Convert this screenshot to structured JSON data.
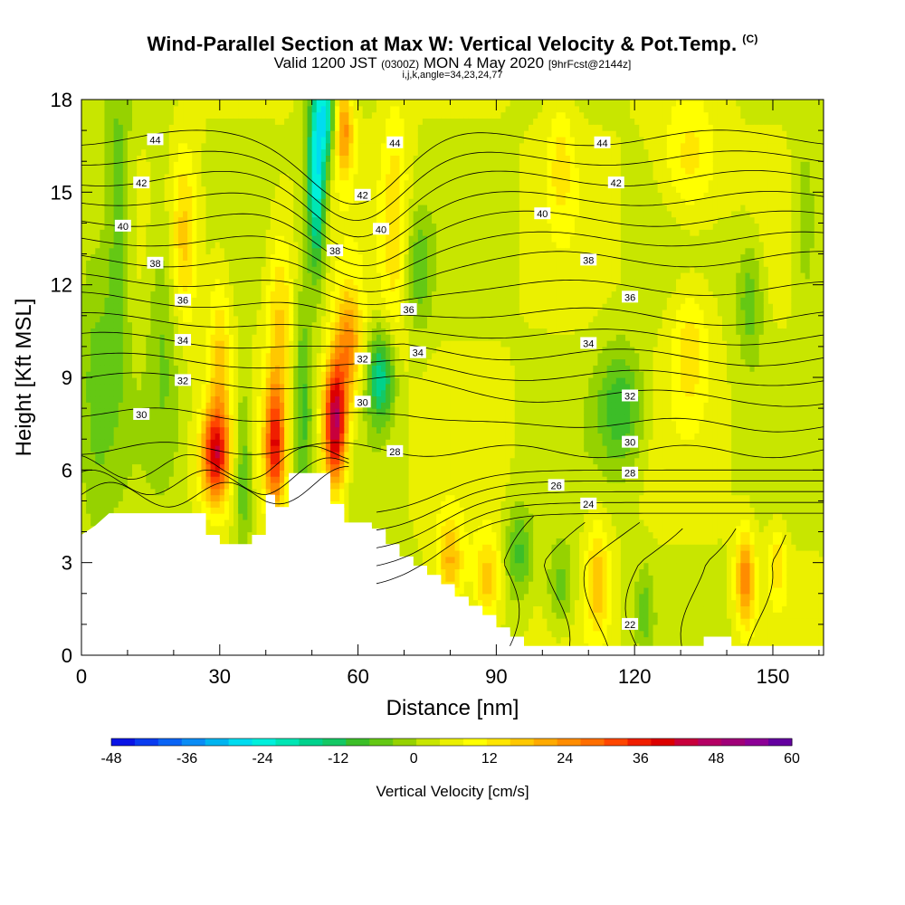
{
  "titles": {
    "main": "Wind-Parallel Section at Max W: Vertical Velocity & Pot.Temp.",
    "copyright": "(C)",
    "valid_prefix": "Valid 1200 JST",
    "valid_utc": "(0300Z)",
    "valid_date": "MON 4 May 2020",
    "forecast": "[9hrFcst@2144z]",
    "indices": "i,j,k,angle=34,23,24,77"
  },
  "chart_data": {
    "type": "heatmap",
    "xlabel": "Distance [nm]",
    "ylabel": "Height [Kft MSL]",
    "xlim": [
      0,
      161
    ],
    "ylim": [
      0,
      18
    ],
    "x_ticks": [
      0,
      30,
      60,
      90,
      120,
      150
    ],
    "y_ticks": [
      0,
      3,
      6,
      9,
      12,
      15,
      18
    ],
    "colorbar": {
      "label": "Vertical Velocity [cm/s]",
      "ticks": [
        -48,
        -36,
        -24,
        -12,
        0,
        12,
        24,
        36,
        48,
        60
      ],
      "colors": [
        "#0a14e6",
        "#0a3cf0",
        "#0a64f5",
        "#0a8cf5",
        "#00b4f0",
        "#00dcf0",
        "#00f0dc",
        "#00e6b4",
        "#00d28c",
        "#14c864",
        "#3cbe28",
        "#64c814",
        "#96d200",
        "#c8e600",
        "#ebf000",
        "#ffff00",
        "#ffe600",
        "#ffc800",
        "#ffaa00",
        "#ff8c00",
        "#ff6e00",
        "#ff4600",
        "#f01e00",
        "#dc0000",
        "#c8003c",
        "#b40064",
        "#a00078",
        "#8c0096",
        "#6400a0"
      ]
    },
    "terrain_kft": [
      [
        0,
        3.9
      ],
      [
        3,
        4.2
      ],
      [
        6,
        4.6
      ],
      [
        27,
        4.6
      ],
      [
        27,
        3.9
      ],
      [
        30,
        3.9
      ],
      [
        30,
        3.6
      ],
      [
        37,
        3.6
      ],
      [
        37,
        3.9
      ],
      [
        40,
        3.9
      ],
      [
        40,
        5.2
      ],
      [
        42,
        5.2
      ],
      [
        42,
        4.8
      ],
      [
        45,
        4.8
      ],
      [
        45,
        5.9
      ],
      [
        54,
        5.9
      ],
      [
        54,
        4.9
      ],
      [
        57,
        4.9
      ],
      [
        57,
        4.3
      ],
      [
        63,
        4.3
      ],
      [
        63,
        4.1
      ],
      [
        66,
        4.1
      ],
      [
        66,
        3.6
      ],
      [
        69,
        3.6
      ],
      [
        69,
        3.2
      ],
      [
        72,
        3.2
      ],
      [
        72,
        2.9
      ],
      [
        75,
        2.9
      ],
      [
        75,
        2.6
      ],
      [
        78,
        2.6
      ],
      [
        78,
        2.3
      ],
      [
        81,
        2.3
      ],
      [
        81,
        1.9
      ],
      [
        84,
        1.9
      ],
      [
        84,
        1.6
      ],
      [
        87,
        1.6
      ],
      [
        87,
        1.3
      ],
      [
        90,
        1.3
      ],
      [
        90,
        0.9
      ],
      [
        93,
        0.9
      ],
      [
        93,
        0.6
      ],
      [
        96,
        0.6
      ],
      [
        96,
        0.3
      ],
      [
        135,
        0.3
      ],
      [
        135,
        0.6
      ],
      [
        141,
        0.6
      ],
      [
        141,
        0.3
      ],
      [
        161,
        0.3
      ]
    ],
    "w_cells": [
      {
        "x": 3,
        "y": 9,
        "w": -8,
        "sx": 4,
        "sy": 5
      },
      {
        "x": 8,
        "y": 14,
        "w": -10,
        "sx": 3,
        "sy": 6
      },
      {
        "x": 18,
        "y": 11,
        "w": -8,
        "sx": 4,
        "sy": 5
      },
      {
        "x": 22,
        "y": 13.5,
        "w": 14,
        "sx": 3,
        "sy": 3
      },
      {
        "x": 29,
        "y": 6.5,
        "w": 32,
        "sx": 3,
        "sy": 1.5
      },
      {
        "x": 30,
        "y": 9.5,
        "w": 12,
        "sx": 2.5,
        "sy": 3
      },
      {
        "x": 35,
        "y": 6,
        "w": -12,
        "sx": 2,
        "sy": 3
      },
      {
        "x": 42,
        "y": 6.8,
        "w": 32,
        "sx": 2.2,
        "sy": 2
      },
      {
        "x": 43,
        "y": 11,
        "w": 12,
        "sx": 3,
        "sy": 3
      },
      {
        "x": 48,
        "y": 8,
        "w": -12,
        "sx": 2,
        "sy": 4
      },
      {
        "x": 51,
        "y": 15.5,
        "w": -30,
        "sx": 2,
        "sy": 3
      },
      {
        "x": 53,
        "y": 17.5,
        "w": -22,
        "sx": 2,
        "sy": 1.5
      },
      {
        "x": 55,
        "y": 7.5,
        "w": 44,
        "sx": 2.5,
        "sy": 2
      },
      {
        "x": 58,
        "y": 10,
        "w": 20,
        "sx": 3,
        "sy": 2
      },
      {
        "x": 57,
        "y": 17,
        "w": 20,
        "sx": 2,
        "sy": 1.5
      },
      {
        "x": 65,
        "y": 9,
        "w": -20,
        "sx": 3,
        "sy": 1.5
      },
      {
        "x": 68,
        "y": 14,
        "w": 10,
        "sx": 3,
        "sy": 4
      },
      {
        "x": 73,
        "y": 12.5,
        "w": -10,
        "sx": 3,
        "sy": 2
      },
      {
        "x": 80,
        "y": 3,
        "w": 16,
        "sx": 3,
        "sy": 1.5
      },
      {
        "x": 88,
        "y": 2.5,
        "w": 14,
        "sx": 3,
        "sy": 1.5
      },
      {
        "x": 95,
        "y": 3.3,
        "w": -12,
        "sx": 3,
        "sy": 1.5
      },
      {
        "x": 104,
        "y": 2.2,
        "w": -10,
        "sx": 3,
        "sy": 1.5
      },
      {
        "x": 112,
        "y": 2.5,
        "w": 14,
        "sx": 2.5,
        "sy": 1.8
      },
      {
        "x": 117,
        "y": 8,
        "w": -14,
        "sx": 5,
        "sy": 2
      },
      {
        "x": 122,
        "y": 1.5,
        "w": -8,
        "sx": 2,
        "sy": 1.5
      },
      {
        "x": 104,
        "y": 16,
        "w": 8,
        "sx": 3,
        "sy": 2
      },
      {
        "x": 132,
        "y": 16,
        "w": 10,
        "sx": 6,
        "sy": 2
      },
      {
        "x": 132,
        "y": 10,
        "w": 10,
        "sx": 4,
        "sy": 2
      },
      {
        "x": 144,
        "y": 2.5,
        "w": 22,
        "sx": 2,
        "sy": 1.5
      },
      {
        "x": 151,
        "y": 3,
        "w": 10,
        "sx": 2,
        "sy": 1.2
      },
      {
        "x": 145,
        "y": 11.5,
        "w": -10,
        "sx": 3,
        "sy": 2
      },
      {
        "x": 157,
        "y": 14,
        "w": -8,
        "sx": 3,
        "sy": 3
      }
    ],
    "theta_levels": [
      22,
      24,
      26,
      28,
      30,
      32,
      34,
      36,
      38,
      40,
      42,
      44
    ],
    "contour_labels": [
      {
        "text": "44",
        "x": 16,
        "y": 16.7
      },
      {
        "text": "44",
        "x": 68,
        "y": 16.6
      },
      {
        "text": "44",
        "x": 113,
        "y": 16.6
      },
      {
        "text": "42",
        "x": 13,
        "y": 15.3
      },
      {
        "text": "42",
        "x": 61,
        "y": 14.9
      },
      {
        "text": "42",
        "x": 116,
        "y": 15.3
      },
      {
        "text": "40",
        "x": 9,
        "y": 13.9
      },
      {
        "text": "40",
        "x": 65,
        "y": 13.8
      },
      {
        "text": "40",
        "x": 100,
        "y": 14.3
      },
      {
        "text": "38",
        "x": 16,
        "y": 12.7
      },
      {
        "text": "38",
        "x": 55,
        "y": 13.1
      },
      {
        "text": "38",
        "x": 110,
        "y": 12.8
      },
      {
        "text": "36",
        "x": 22,
        "y": 11.5
      },
      {
        "text": "36",
        "x": 71,
        "y": 11.2
      },
      {
        "text": "36",
        "x": 119,
        "y": 11.6
      },
      {
        "text": "34",
        "x": 22,
        "y": 10.2
      },
      {
        "text": "34",
        "x": 73,
        "y": 9.8
      },
      {
        "text": "34",
        "x": 110,
        "y": 10.1
      },
      {
        "text": "32",
        "x": 22,
        "y": 8.9
      },
      {
        "text": "32",
        "x": 61,
        "y": 9.6
      },
      {
        "text": "32",
        "x": 119,
        "y": 8.4
      },
      {
        "text": "30",
        "x": 13,
        "y": 7.8
      },
      {
        "text": "30",
        "x": 61,
        "y": 8.2
      },
      {
        "text": "30",
        "x": 119,
        "y": 6.9
      },
      {
        "text": "28",
        "x": 68,
        "y": 6.6
      },
      {
        "text": "28",
        "x": 119,
        "y": 5.9
      },
      {
        "text": "26",
        "x": 103,
        "y": 5.5
      },
      {
        "text": "24",
        "x": 110,
        "y": 4.9
      },
      {
        "text": "22",
        "x": 119,
        "y": 1.0
      }
    ]
  }
}
